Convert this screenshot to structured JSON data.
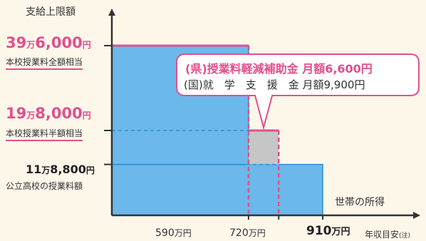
{
  "chart_data": {
    "type": "bar",
    "title": "",
    "ylabel": "支給上限額",
    "xlabel": "年収目安",
    "xlabel_note": "(注)",
    "x_tick_labels": [
      {
        "value": "590",
        "unit": "万円"
      },
      {
        "value": "720",
        "unit": "万円"
      },
      {
        "value": "910",
        "unit": "万円"
      }
    ],
    "steps": [
      {
        "from": 0,
        "to": 590,
        "value": 396000
      },
      {
        "from": 590,
        "to": 720,
        "value": 198000
      },
      {
        "from": 720,
        "to": 910,
        "value": 118800
      }
    ],
    "state_support_by_income": [
      {
        "from": 0,
        "to": 590,
        "value": 118800
      },
      {
        "from": 590,
        "to": 720,
        "value": 118800
      },
      {
        "from": 720,
        "to": 910,
        "value": 118800
      }
    ],
    "y_labels": [
      {
        "man": "39",
        "rest": "6,000",
        "yen": "円",
        "sub": "本校授業料全額相当"
      },
      {
        "man": "19",
        "rest": "8,000",
        "yen": "円",
        "sub": "本校授業料半額相当"
      },
      {
        "man": "11",
        "rest": "8,800",
        "yen": "円",
        "sub": "公立高校の授業料額"
      }
    ],
    "man_unit": "万",
    "income_label": "世帯の所得",
    "callout": {
      "line1": "(県)授業料軽減補助金 月額6,600円",
      "line2_prefix": "(国)就　学　支　援　金",
      "line2_amount": "月額9,900円"
    },
    "ylim": [
      0,
      430000
    ],
    "xlim": [
      0,
      1000
    ]
  },
  "colors": {
    "blue_fill": "#6cb8ea",
    "blue_line": "#2c8fd6",
    "gray_fill": "#c6c6c6",
    "pink": "#e0508c",
    "background": "#fdf7ea"
  }
}
